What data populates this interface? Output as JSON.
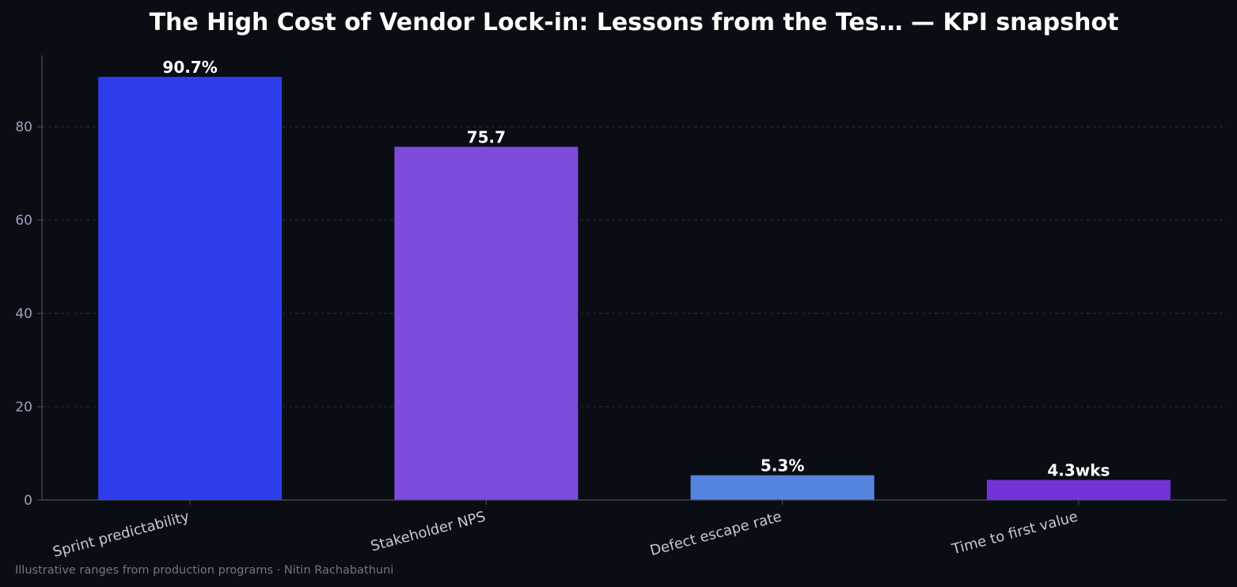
{
  "footnote": "Illustrative ranges from production programs · Nitin Rachabathuni",
  "colors": {
    "background": "#0a0d14",
    "grid": "#4a3f7a",
    "axis": "#4a5060",
    "label": "#ffffff"
  },
  "chart_data": {
    "type": "bar",
    "title": "The High Cost of Vendor Lock-in: Lessons from the Tes… — KPI snapshot",
    "xlabel": "",
    "ylabel": "",
    "categories": [
      "Sprint predictability",
      "Stakeholder NPS",
      "Defect escape rate",
      "Time to first value"
    ],
    "values": [
      90.7,
      75.7,
      5.3,
      4.3
    ],
    "value_labels": [
      "90.7%",
      "75.7",
      "5.3%",
      "4.3wks"
    ],
    "bar_colors": [
      "#2e3deb",
      "#7d4cdb",
      "#5584de",
      "#7333d9"
    ],
    "ylim": [
      0,
      95.3
    ],
    "yticks": [
      0,
      20,
      40,
      60,
      80
    ],
    "grid": "horizontal dashed",
    "legend": "none"
  }
}
